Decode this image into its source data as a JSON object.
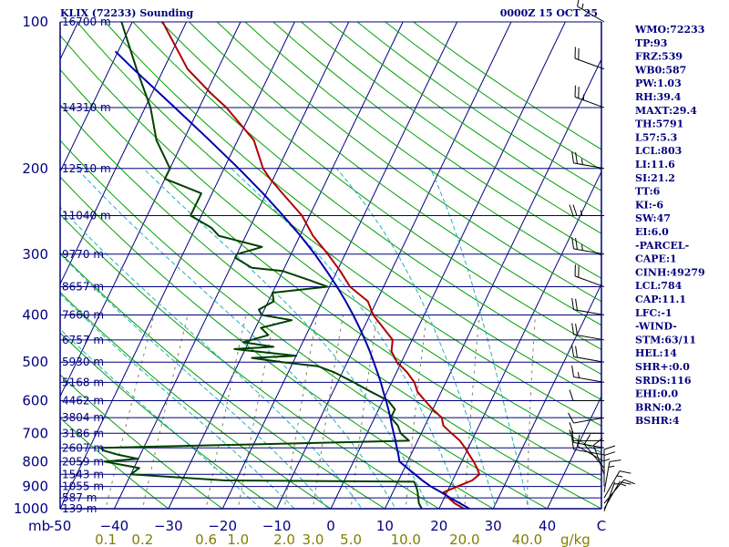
{
  "title_left": "KLIX (72233) Sounding",
  "title_right": "0000Z 15 OCT 25",
  "colors": {
    "axis": "#00007f",
    "isotherm": "#00007f",
    "dry_adiabat": "#00a000",
    "moist_adiabat": "#20b0c0",
    "mixing_ratio": "#808060",
    "temperature": "#b00000",
    "dewpoint": "#004000",
    "parcel": "#0000aa",
    "wind": "#000000",
    "wlabel": "#7f7f00"
  },
  "chart_data": {
    "type": "line",
    "title": "KLIX (72233) Sounding",
    "xlabel": "",
    "ylabel": "mb",
    "plim": [
      100,
      1000
    ],
    "tlim": [
      -50,
      50
    ],
    "pressure_ticks": [
      100,
      200,
      300,
      400,
      500,
      600,
      700,
      800,
      900,
      1000
    ],
    "temperature_ticks": [
      -50,
      -40,
      -30,
      -20,
      -10,
      0,
      10,
      20,
      30,
      40,
      50
    ],
    "temperature_tick_labels": [
      "-50",
      "−40",
      "−30",
      "−20",
      "−10",
      "0",
      "10",
      "20",
      "30",
      "40",
      "C"
    ],
    "axis_unit_label": "mb",
    "mixing_ratio_ticks": [
      0.1,
      0.2,
      0.6,
      1.0,
      2.0,
      3.0,
      5.0,
      10.0,
      20.0,
      40.0
    ],
    "mixing_ratio_tick_labels": [
      "0.1",
      "0.2",
      "0.6",
      "1.0",
      "2.0",
      "3.0",
      "5.0",
      "10.0",
      "20.0",
      "40.0"
    ],
    "mixing_ratio_unit": "g/kg",
    "height_levels": [
      {
        "p": 100,
        "label": "16700 m"
      },
      {
        "p": 150,
        "label": "14310 m"
      },
      {
        "p": 200,
        "label": "12510 m"
      },
      {
        "p": 250,
        "label": "11040 m"
      },
      {
        "p": 300,
        "label": "9770 m"
      },
      {
        "p": 350,
        "label": "8657 m"
      },
      {
        "p": 400,
        "label": "7660 m"
      },
      {
        "p": 450,
        "label": "6757 m"
      },
      {
        "p": 500,
        "label": "5930 m"
      },
      {
        "p": 550,
        "label": "5168 m"
      },
      {
        "p": 600,
        "label": "4462 m"
      },
      {
        "p": 650,
        "label": "3804 m"
      },
      {
        "p": 700,
        "label": "3186 m"
      },
      {
        "p": 750,
        "label": "2607 m"
      },
      {
        "p": 800,
        "label": "2059 m"
      },
      {
        "p": 850,
        "label": "1543 m"
      },
      {
        "p": 900,
        "label": "1055 m"
      },
      {
        "p": 950,
        "label": "587 m"
      },
      {
        "p": 1000,
        "label": "139 m"
      }
    ],
    "series": [
      {
        "key": "temperature",
        "points": [
          [
            1012,
            26.6
          ],
          [
            1000,
            24.6
          ],
          [
            975,
            22.4
          ],
          [
            950,
            20.8
          ],
          [
            925,
            19.4
          ],
          [
            920,
            19.8
          ],
          [
            900,
            21.4
          ],
          [
            875,
            23.6
          ],
          [
            850,
            24.4
          ],
          [
            825,
            23.4
          ],
          [
            800,
            22.2
          ],
          [
            775,
            20.8
          ],
          [
            750,
            19.4
          ],
          [
            725,
            17.8
          ],
          [
            700,
            15.6
          ],
          [
            675,
            13.4
          ],
          [
            650,
            12.4
          ],
          [
            625,
            10.0
          ],
          [
            600,
            7.8
          ],
          [
            575,
            5.6
          ],
          [
            550,
            4.2
          ],
          [
            525,
            2.0
          ],
          [
            500,
            -0.8
          ],
          [
            475,
            -2.8
          ],
          [
            450,
            -3.6
          ],
          [
            425,
            -6.4
          ],
          [
            400,
            -9.4
          ],
          [
            375,
            -11.6
          ],
          [
            350,
            -16.2
          ],
          [
            325,
            -19.4
          ],
          [
            300,
            -23.2
          ],
          [
            275,
            -27.6
          ],
          [
            250,
            -31.4
          ],
          [
            225,
            -37.0
          ],
          [
            210,
            -40.6
          ],
          [
            200,
            -42.8
          ],
          [
            175,
            -47.0
          ],
          [
            150,
            -55.0
          ],
          [
            140,
            -59.2
          ],
          [
            125,
            -65.6
          ],
          [
            100,
            -74.4
          ]
        ]
      },
      {
        "key": "dewpoint",
        "points": [
          [
            1012,
            18.0
          ],
          [
            1000,
            16.8
          ],
          [
            975,
            15.8
          ],
          [
            950,
            15.2
          ],
          [
            925,
            14.6
          ],
          [
            900,
            13.8
          ],
          [
            880,
            13.0
          ],
          [
            875,
            -22.0
          ],
          [
            850,
            -40.0
          ],
          [
            825,
            -39.0
          ],
          [
            800,
            -46.0
          ],
          [
            790,
            -40.0
          ],
          [
            775,
            -44.0
          ],
          [
            760,
            -47.0
          ],
          [
            750,
            -48.0
          ],
          [
            725,
            8.4
          ],
          [
            700,
            6.2
          ],
          [
            675,
            5.0
          ],
          [
            650,
            3.0
          ],
          [
            625,
            3.0
          ],
          [
            600,
            1.0
          ],
          [
            575,
            -3.0
          ],
          [
            550,
            -7.0
          ],
          [
            525,
            -11.4
          ],
          [
            510,
            -15.0
          ],
          [
            500,
            -22.0
          ],
          [
            490,
            -28.0
          ],
          [
            485,
            -20.0
          ],
          [
            470,
            -32.0
          ],
          [
            465,
            -25.0
          ],
          [
            455,
            -31.0
          ],
          [
            440,
            -27.0
          ],
          [
            425,
            -29.0
          ],
          [
            410,
            -24.0
          ],
          [
            400,
            -30.0
          ],
          [
            390,
            -31.0
          ],
          [
            375,
            -29.0
          ],
          [
            360,
            -30.0
          ],
          [
            350,
            -20.4
          ],
          [
            340,
            -24.0
          ],
          [
            325,
            -30.0
          ],
          [
            320,
            -36.0
          ],
          [
            305,
            -40.0
          ],
          [
            300,
            -40.0
          ],
          [
            290,
            -36.0
          ],
          [
            275,
            -45.0
          ],
          [
            265,
            -47.0
          ],
          [
            250,
            -52.0
          ],
          [
            225,
            -52.0
          ],
          [
            210,
            -60.0
          ],
          [
            200,
            -60.0
          ],
          [
            175,
            -65.0
          ],
          [
            150,
            -69.0
          ],
          [
            125,
            -75.0
          ],
          [
            100,
            -82.0
          ]
        ]
      },
      {
        "key": "parcel",
        "points": [
          [
            1012,
            26.6
          ],
          [
            1000,
            25.6
          ],
          [
            975,
            23.4
          ],
          [
            950,
            21.1
          ],
          [
            925,
            18.9
          ],
          [
            900,
            16.5
          ],
          [
            875,
            14.4
          ],
          [
            850,
            12.5
          ],
          [
            825,
            10.5
          ],
          [
            800,
            8.5
          ],
          [
            775,
            7.7
          ],
          [
            750,
            6.8
          ],
          [
            725,
            5.9
          ],
          [
            700,
            4.9
          ],
          [
            675,
            3.9
          ],
          [
            650,
            2.9
          ],
          [
            625,
            1.8
          ],
          [
            600,
            0.6
          ],
          [
            575,
            -0.7
          ],
          [
            550,
            -2.0
          ],
          [
            525,
            -3.5
          ],
          [
            500,
            -5.1
          ],
          [
            475,
            -6.8
          ],
          [
            450,
            -8.7
          ],
          [
            425,
            -10.8
          ],
          [
            400,
            -13.1
          ],
          [
            375,
            -15.7
          ],
          [
            350,
            -18.6
          ],
          [
            325,
            -21.9
          ],
          [
            300,
            -25.6
          ],
          [
            275,
            -29.9
          ],
          [
            250,
            -34.9
          ],
          [
            225,
            -40.6
          ],
          [
            200,
            -47.3
          ],
          [
            175,
            -55.2
          ],
          [
            150,
            -64.5
          ],
          [
            125,
            -75.6
          ],
          [
            115,
            -80.5
          ]
        ]
      }
    ],
    "wind_barbs": [
      {
        "p": 1012,
        "dir": 20,
        "spd": 5
      },
      {
        "p": 1000,
        "dir": 30,
        "spd": 10
      },
      {
        "p": 975,
        "dir": 40,
        "spd": 15
      },
      {
        "p": 950,
        "dir": 30,
        "spd": 15
      },
      {
        "p": 925,
        "dir": 10,
        "spd": 15
      },
      {
        "p": 900,
        "dir": 360,
        "spd": 15
      },
      {
        "p": 875,
        "dir": 360,
        "spd": 10
      },
      {
        "p": 850,
        "dir": 340,
        "spd": 10
      },
      {
        "p": 825,
        "dir": 320,
        "spd": 10
      },
      {
        "p": 800,
        "dir": 300,
        "spd": 10
      },
      {
        "p": 775,
        "dir": 280,
        "spd": 10
      },
      {
        "p": 750,
        "dir": 280,
        "spd": 10
      },
      {
        "p": 725,
        "dir": 270,
        "spd": 10
      },
      {
        "p": 700,
        "dir": 270,
        "spd": 10
      },
      {
        "p": 650,
        "dir": 260,
        "spd": 10
      },
      {
        "p": 600,
        "dir": 270,
        "spd": 10
      },
      {
        "p": 550,
        "dir": 280,
        "spd": 15
      },
      {
        "p": 500,
        "dir": 280,
        "spd": 20
      },
      {
        "p": 450,
        "dir": 280,
        "spd": 20
      },
      {
        "p": 400,
        "dir": 280,
        "spd": 20
      },
      {
        "p": 350,
        "dir": 290,
        "spd": 20
      },
      {
        "p": 300,
        "dir": 280,
        "spd": 25
      },
      {
        "p": 250,
        "dir": 270,
        "spd": 25
      },
      {
        "p": 200,
        "dir": 280,
        "spd": 25
      },
      {
        "p": 150,
        "dir": 290,
        "spd": 25
      },
      {
        "p": 125,
        "dir": 290,
        "spd": 20
      },
      {
        "p": 100,
        "dir": 300,
        "spd": 15
      }
    ]
  },
  "indices": [
    "WMO:72233",
    "TP:93",
    "FRZ:539",
    "WB0:587",
    "PW:1.03",
    "RH:39.4",
    "MAXT:29.4",
    "TH:5791",
    "L57:5.3",
    "LCL:803",
    "LI:11.6",
    "SI:21.2",
    "TT:6",
    "KI:-6",
    "SW:47",
    "EI:6.0",
    "-PARCEL-",
    "CAPE:1",
    "CINH:49279",
    "LCL:784",
    "CAP:11.1",
    "LFC:-1",
    "-WIND-",
    "STM:63/11",
    "HEL:14",
    "SHR+:0.0",
    "SRDS:116",
    "EHI:0.0",
    "BRN:0.2",
    "BSHR:4"
  ]
}
